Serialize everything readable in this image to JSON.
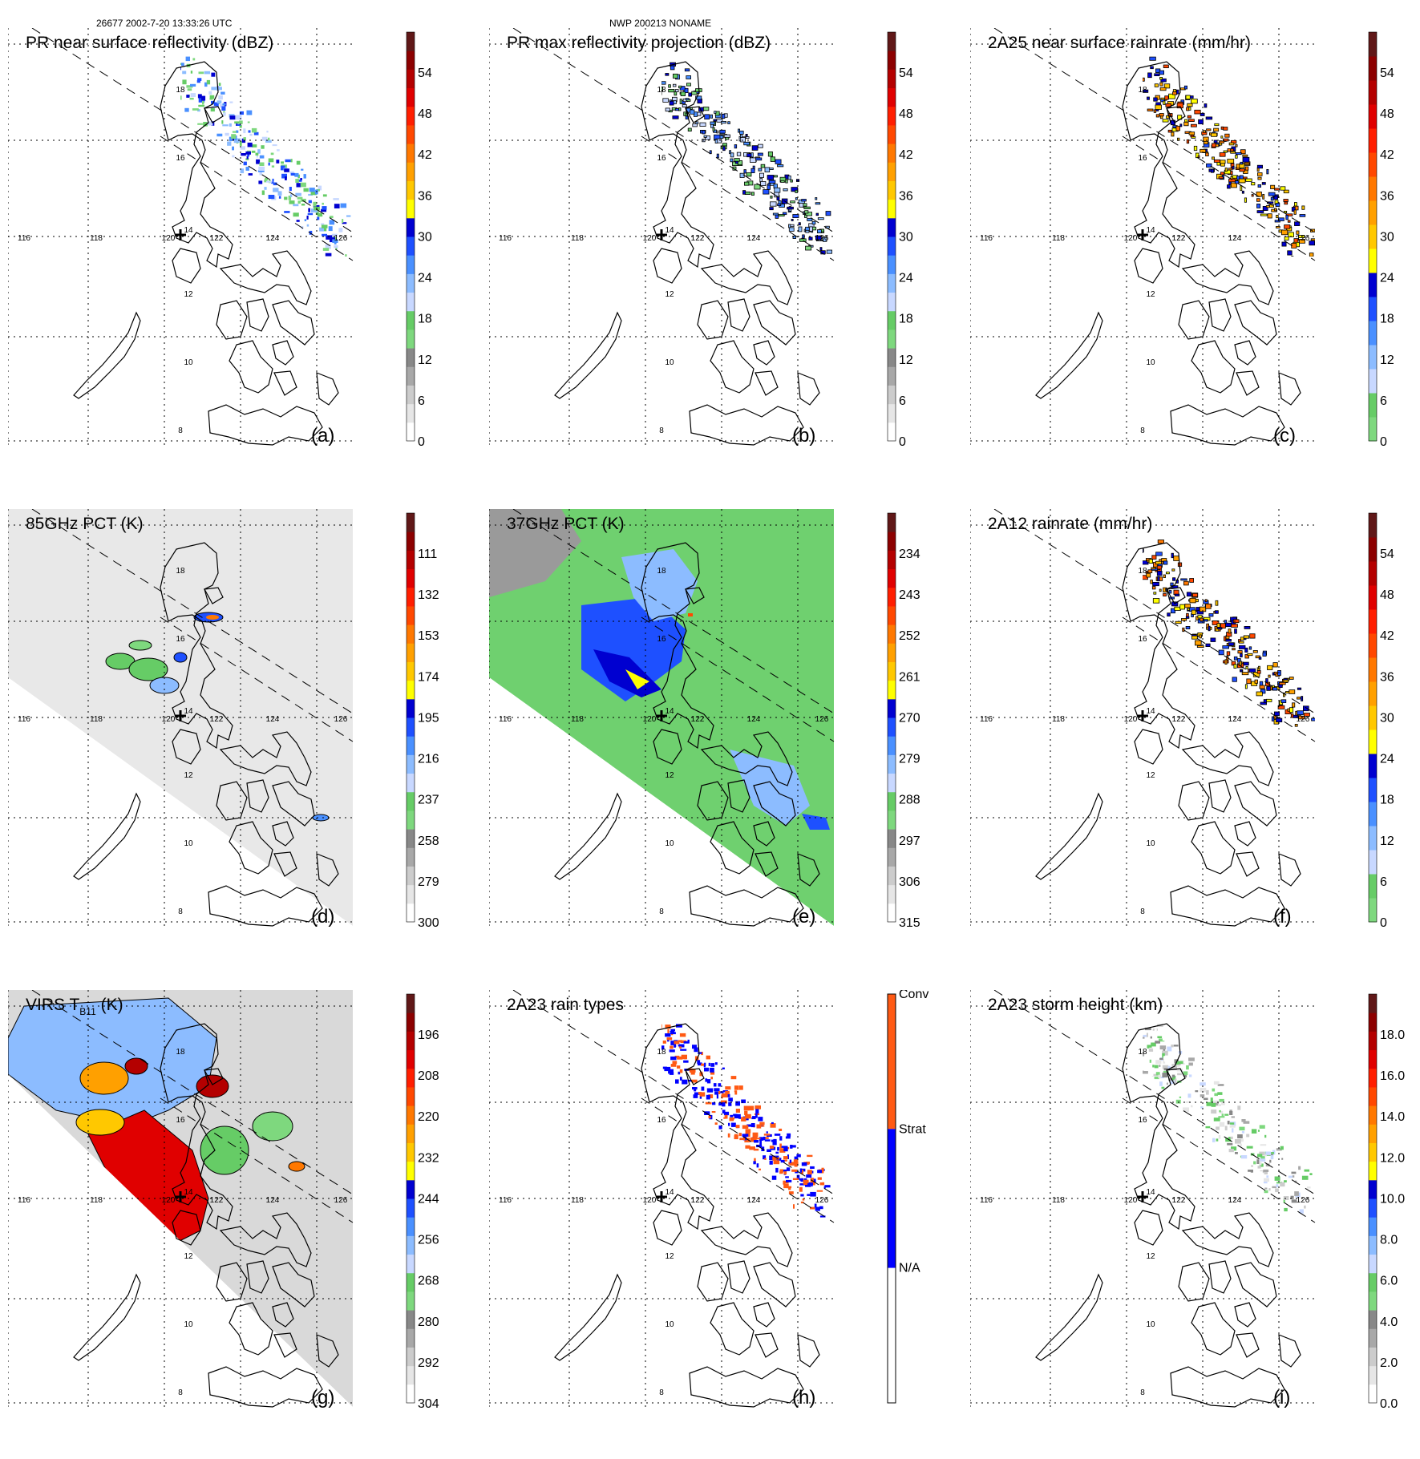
{
  "header": {
    "left": "26677 2002-7-20 13:33:26 UTC",
    "center": "NWP 200213 NONAME"
  },
  "map": {
    "lon_labels": [
      "116",
      "118",
      "120",
      "122",
      "124",
      "126"
    ],
    "lat_labels": [
      "18",
      "16",
      "14",
      "12",
      "10",
      "8"
    ]
  },
  "panels": [
    {
      "id": "a",
      "title": "PR near surface reflectivity (dBZ)",
      "letter": "(a)",
      "ticks": [
        "54",
        "48",
        "42",
        "36",
        "30",
        "24",
        "18",
        "12",
        "6",
        "0"
      ],
      "scale": "std",
      "swath": "pr",
      "precip": "ref"
    },
    {
      "id": "b",
      "title": "PR max reflectivity projection (dBZ)",
      "letter": "(b)",
      "ticks": [
        "54",
        "48",
        "42",
        "36",
        "30",
        "24",
        "18",
        "12",
        "6",
        "0"
      ],
      "scale": "std",
      "swath": "pr",
      "precip": "ref2"
    },
    {
      "id": "c",
      "title": "2A25 near surface rainrate (mm/hr)",
      "letter": "(c)",
      "ticks": [
        "54",
        "48",
        "42",
        "36",
        "30",
        "24",
        "18",
        "12",
        "6",
        "0"
      ],
      "scale": "rain",
      "swath": "pr",
      "precip": "rain"
    },
    {
      "id": "d",
      "title": "85GHz PCT (K)",
      "letter": "(d)",
      "ticks": [
        "111",
        "132",
        "153",
        "174",
        "195",
        "216",
        "237",
        "258",
        "279",
        "300"
      ],
      "scale": "std",
      "swath": "tmi",
      "precip": "pct85"
    },
    {
      "id": "e",
      "title": "37GHz PCT (K)",
      "letter": "(e)",
      "ticks": [
        "234",
        "243",
        "252",
        "261",
        "270",
        "279",
        "288",
        "297",
        "306",
        "315"
      ],
      "scale": "std",
      "swath": "tmi",
      "precip": "pct37"
    },
    {
      "id": "f",
      "title": "2A12 rainrate (mm/hr)",
      "letter": "(f)",
      "ticks": [
        "54",
        "48",
        "42",
        "36",
        "30",
        "24",
        "18",
        "12",
        "6",
        "0"
      ],
      "scale": "rain",
      "swath": "pr",
      "precip": "rain12"
    },
    {
      "id": "g",
      "title": "VIRS T",
      "title_sub": "B11",
      "title_tail": " (K)",
      "letter": "(g)",
      "ticks": [
        "196",
        "208",
        "220",
        "232",
        "244",
        "256",
        "268",
        "280",
        "292",
        "304"
      ],
      "scale": "std",
      "swath": "virs",
      "precip": "virs"
    },
    {
      "id": "h",
      "title": "2A23 rain types",
      "letter": "(h)",
      "ticks": [
        "Conv",
        "Strat",
        "N/A"
      ],
      "scale": "types",
      "swath": "pr",
      "precip": "types"
    },
    {
      "id": "i",
      "title": "2A23 storm height (km)",
      "letter": "(i)",
      "ticks": [
        "18.0",
        "16.0",
        "14.0",
        "12.0",
        "10.0",
        "8.0",
        "6.0",
        "4.0",
        "2.0",
        "0.0"
      ],
      "scale": "std",
      "swath": "pr",
      "precip": "height"
    }
  ],
  "colors": {
    "std": [
      "#ffffff",
      "#e6e6e6",
      "#cccccc",
      "#a8a8a8",
      "#888888",
      "#7ed87e",
      "#66cc66",
      "#c8d8ff",
      "#8cbcff",
      "#4a90ff",
      "#1e50ff",
      "#0000d0",
      "#ffff00",
      "#ffc800",
      "#ffa000",
      "#ff7800",
      "#ff4800",
      "#ff1e00",
      "#e00000",
      "#b40000",
      "#8c0000",
      "#601818"
    ],
    "rain": [
      "#7ed87e",
      "#66cc66",
      "#c8d8ff",
      "#8cbcff",
      "#4a90ff",
      "#1e50ff",
      "#0000d0",
      "#ffff00",
      "#ffc800",
      "#ffa000",
      "#ff7800",
      "#ff4800",
      "#ff1e00",
      "#e00000",
      "#b40000",
      "#8c0000",
      "#601818"
    ],
    "types": [
      "#ffffff",
      "#0000ff",
      "#ff5a14"
    ]
  }
}
